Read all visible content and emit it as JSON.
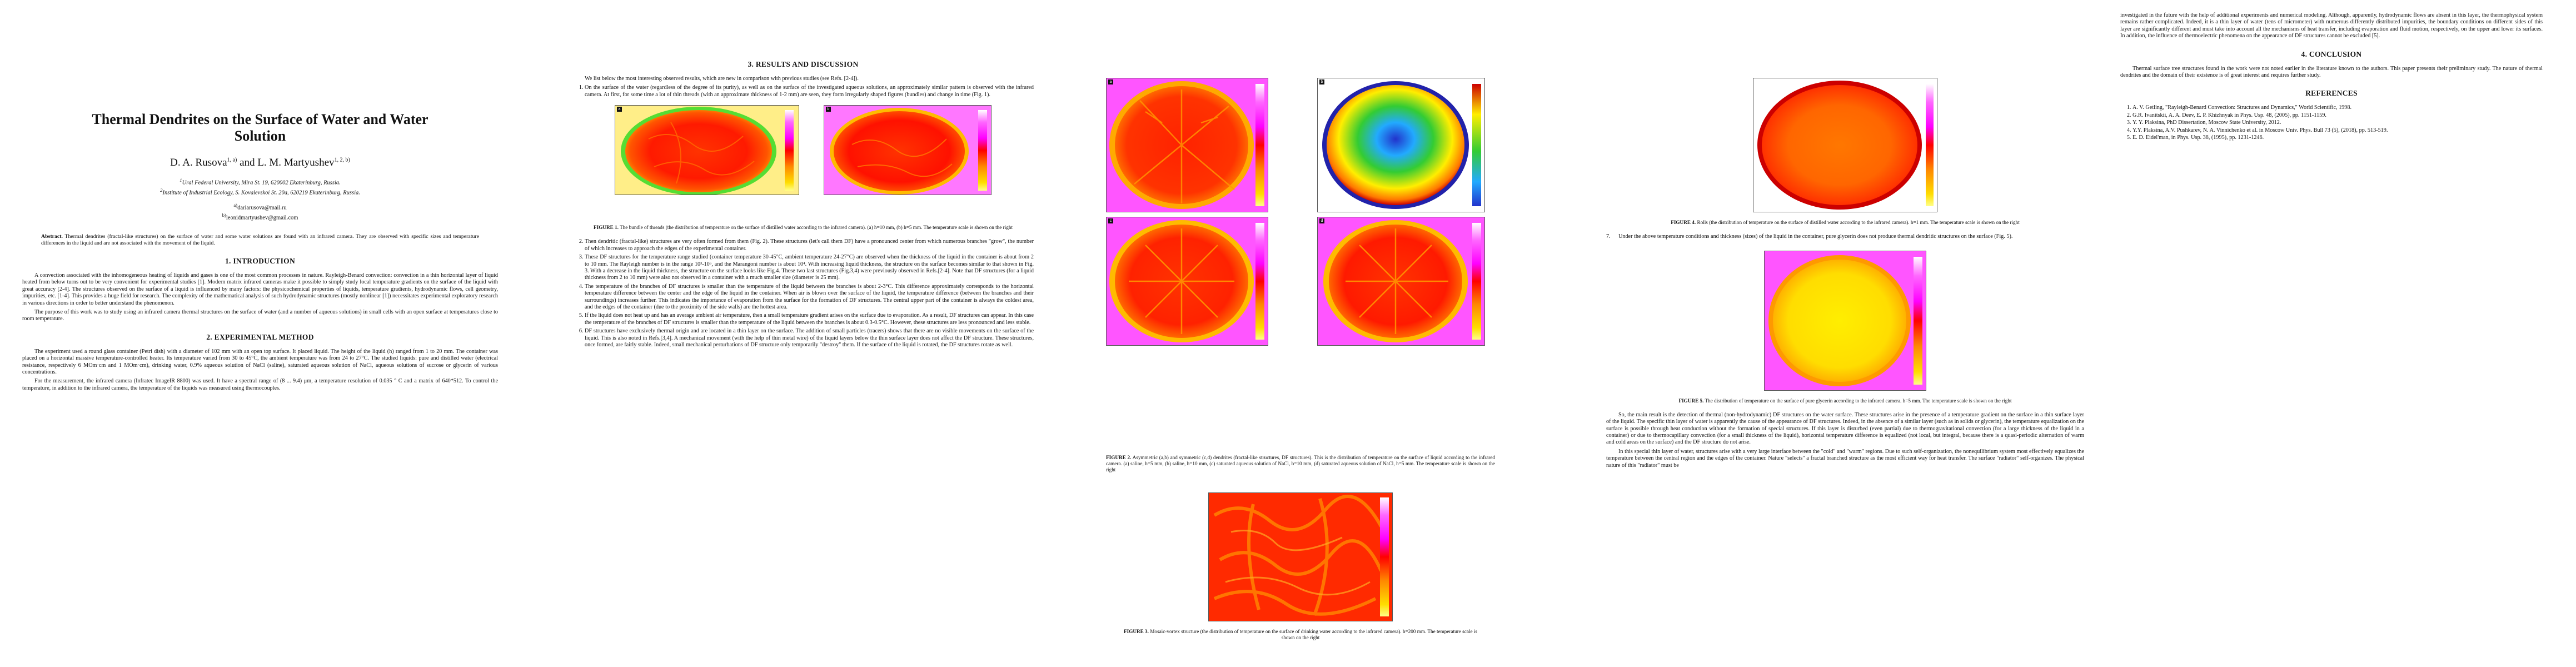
{
  "title": "Thermal Dendrites on the Surface of Water and Water Solution",
  "authors": "D. A. Rusova",
  "authors_sup1": "1, a)",
  "authors_and": "and L. M. Martyushev",
  "authors_sup2": "1, 2, b)",
  "affiliation1": "Ural Federal University, Mira St. 19, 620002 Ekaterinburg, Russia.",
  "affiliation2": "Institute of Industrial Ecology, S. Kovalevskoi St. 20a, 620219 Ekaterinburg, Russia.",
  "affil_sup1": "1",
  "affil_sup2": "2",
  "email_a": "dariarusova@mail.ru",
  "email_b": "leonidmartyushev@gmail.com",
  "email_sup_a": "a)",
  "email_sup_b": "b)",
  "abstract_label": "Abstract.",
  "abstract_text": "Thermal dendrites (fractal-like structures) on the surface of water and some water solutions are found with an infrared camera. They are observed with specific sizes and temperature differences in the liquid and are not associated with the movement of the liquid.",
  "sections": {
    "intro": "1.   INTRODUCTION",
    "method": "2.   EXPERIMENTAL METHOD",
    "results": "3.   RESULTS AND DISCUSSION",
    "conclusion": "4.   CONCLUSION",
    "references": "REFERENCES"
  },
  "intro_p1": "A convection associated with the inhomogeneous heating of liquids and gases is one of the most common processes in nature. Rayleigh-Benard convection: convection in a thin horizontal layer of liquid heated from below turns out to be very convenient for experimental studies [1]. Modern matrix infrared cameras make it possible to simply study local temperature gradients on the surface of the liquid with great accuracy [2-4]. The structures observed on the surface of a liquid is influenced by many factors: the physicochemical properties of liquids, temperature gradients, hydrodynamic flows, cell geometry, impurities, etc. [1-4]. This provides a huge field for research. The complexity of the mathematical analysis of such hydrodynamic structures (mostly nonlinear [1]) necessitates experimental exploratory research in various directions in order to better understand the phenomenon.",
  "intro_p2": "The purpose of this work was to study using an infrared camera thermal structures on the surface of water (and a number of aqueous solutions) in small cells with an open surface at temperatures close to room temperature.",
  "method_p1": "The experiment used a round glass container (Petri dish) with a diameter of 102 mm with an open top surface. It placed liquid. The height of the liquid (h) ranged from 1 to 20 mm. The container was placed on a horizontal massive temperature-controlled heater. Its temperature varied from 30 to 45°C, the ambient temperature was from 24 to 27°C. The studied liquids: pure and distilled water (electrical resistance, respectively 6 MOm·cm and 1 MOm·cm), drinking water, 0.9% aqueous solution of NaCl (saline), saturated aqueous solution of NaCl, aqueous solutions of sucrose or glycerin of various concentrations.",
  "method_p2": "For the measurement, the infrared camera (Infratec ImageIR 8800) was used. It have a spectral range of (8 ... 9.4) μm, a temperature resolution of 0.035 ° C and a matrix of 640*512. To control the temperature, in addition to the infrared camera, the temperature of the liquids was measured using thermocouples.",
  "results_intro": "We list below the most interesting observed results, which are new in comparison with previous studies (see Refs. [2-4]).",
  "results_items": [
    "On the surface of the water (regardless of the degree of its purity), as well as on the surface of the investigated aqueous solutions, an approximately similar pattern is observed with the infrared camera. At first, for some time a lot of thin threads (with an approximate thickness of 1-2 mm) are seen, they form irregularly shaped figures (bundles) and change in time (Fig. 1).",
    "Then dendritic (fractal-like) structures are very often formed from them (Fig. 2). These structures (let's call them DF) have a pronounced center from which numerous branches \"grow\", the number of which increases to approach the edges of the experimental container.",
    "These DF structures for the temperature range studied (container temperature 30-45°C, ambient temperature 24-27°C) are observed when the thickness of the liquid in the container is about from 2 to 10 mm. The Rayleigh number is in the range 10³-10⁶, and the Marangoni number is about 10⁴. With increasing liquid thickness, the structure on the surface becomes similar to that shown in Fig. 3. With a decrease in the liquid thickness, the structure on the surface looks like Fig.4. These two last structures (Fig.3,4) were previously observed in Refs.[2-4]. Note that DF structures (for a liquid thickness from 2 to 10 mm) were also not observed in a container with a much smaller size (diameter is 25 mm).",
    "The temperature of the branches of DF structures is smaller than the temperature of the liquid between the branches is about 2-3°C. This difference approximately corresponds to the horizontal temperature difference between the center and the edge of the liquid in the container. When air is blown over the surface of the liquid, the temperature difference (between the branches and their surroundings) increases further. This indicates the importance of evaporation from the surface for the formation of DF structures. The central upper part of the container is always the coldest area, and the edges of the container (due to the proximity of the side walls) are the hottest area.",
    "If the liquid does not heat up and has an average ambient air temperature, then a small temperature gradient arises on the surface due to evaporation. As a result, DF structures can appear. In this case the temperature of the branches of DF structures is smaller than the temperature of the liquid between the branches is about 0.3-0.5°C. However, these structures are less pronounced and less stable.",
    "DF structures have exclusively thermal origin and are located in a thin layer on the surface. The addition of small particles (tracers) shows that there are no visible movements on the surface of the liquid. This is also noted in Refs.[3,4]. A mechanical movement (with the help of thin metal wire) of the liquid layers below the thin surface layer does not affect the DF structure. These structures, once formed, are fairly stable. Indeed, small mechanical perturbations of DF structure only temporarily \"destroy\" them. If the surface of the liquid is rotated, the DF structures rotate as well."
  ],
  "results_items_cont": [
    "Under the above temperature conditions and thickness (sizes) of the liquid in the container, pure glycerin does not produce thermal dendritic structures on the surface (Fig. 5)."
  ],
  "results_cont_number": "7.",
  "fig1_caption_label": "FIGURE 1.",
  "fig1_caption": "The bundle of threads (the distribution of temperature on the surface of distilled water according to the infrared camera). (a) h=10 mm, (b) h=5 mm. The temperature scale is shown on the right",
  "fig2_caption_label": "FIGURE 2.",
  "fig2_caption": "Asymmetric (a,b) and symmetric (c,d) dendrites (fractal-like structures, DF structures). This is the distribution of temperature on the surface of liquid according to the infrared camera. (a) saline, h=5 mm, (b) saline, h=10 mm, (c) saturated aqueous solution of NaCl, h=10 mm, (d) saturated aqueous solution of NaCl, h=5 mm. The temperature scale is shown on the right",
  "fig3_caption_label": "FIGURE 3.",
  "fig3_caption": "Mosaic-vortex structure (the distribution of temperature on the surface of drinking water according to the infrared camera). h=200 mm. The temperature scale is shown on the right",
  "fig4_caption_label": "FIGURE 4.",
  "fig4_caption": "Rolls (the distribution of temperature on the surface of distilled water according to the infrared camera). h=1 mm. The temperature scale is shown on the right",
  "fig5_caption_label": "FIGURE 5.",
  "fig5_caption": "The distribution of temperature on the surface of pure glycerin according to the infrared camera. h=5 mm. The temperature scale is shown on the right",
  "panel_labels": [
    "a",
    "b",
    "c",
    "d"
  ],
  "discussion_p1": "So, the main result is the detection of thermal (non-hydrodynamic) DF structures on the water surface. These structures arise in the presence of a temperature gradient on the surface in a thin surface layer of the liquid. The specific thin layer of water is apparently the cause of the appearance of DF structures. Indeed, in the absence of a similar layer (such as in solids or glycerin), the temperature equalization on the surface is possible through heat conduction without the formation of special structures. If this layer is disturbed (even partial) due to thermogravitational convection (for a large thickness of the liquid in a container) or due to thermocapillary convection (for a small thickness of the liquid), horizontal temperature difference is equalized (not local, but integral, because there is a quasi-periodic alternation of warm and cold areas on the surface) and the DF structure do not arise.",
  "discussion_p2": "In this special thin layer of water, structures arise with a very large interface between the \"cold\" and \"warm\" regions. Due to such self-organization, the nonequilibrium system most effectively equalizes the temperature between the central region and the edges of the container. Nature \"selects\" a fractal branched structure as the most efficient way for heat transfer. The surface \"radiator\" self-organizes. The physical nature of this \"radiator\" must be",
  "discussion_p3": "investigated in the future with the help of additional experiments and numerical modeling. Although, apparently, hydrodynamic flows are absent in this layer, the thermophysical system remains rather complicated. Indeed, it is a thin layer of water (tens of micrometer) with numerous differently distributed impurities, the boundary conditions on different sides of this layer are significantly different and must take into account all the mechanisms of heat transfer, including evaporation and fluid motion, respectively, on the upper and lower its surfaces. In addition, the influence of thermoelectric phenomena on the appearance of DF structures cannot be excluded [5].",
  "conclusion_p1": "Thermal surface tree structures found in the work were not noted earlier in the literature known to the authors. This paper presents their preliminary study. The nature of thermal dendrites and the domain of their existence is of great interest and requires further study.",
  "references": [
    "A. V. Getling, \"Rayleigh-Benard Convection: Structures and Dynamics,\" World Scientific, 1998.",
    "G.R. Ivanitskii, A. A. Deev, E. P. Khizhnyak in Phys. Usp. 48, (2005), pp. 1151-1159.",
    "Y. Y. Plaksina, PhD Dissertation, Moscow State University, 2012.",
    "Y.Y. Plaksina, A.V. Pushkarev, N. A. Vinnichenko et al. in Moscow Univ. Phys. Bull 73 (5), (2018), pp. 513-519.",
    "E. D. Eidel'man, in Phys. Usp. 38, (1995), pp. 1231-1246."
  ],
  "scale_colors": [
    "#ffffff",
    "#ff66ff",
    "#ff00ff",
    "#cc00cc",
    "#ff0000",
    "#ff7700",
    "#ffcc00",
    "#ffff66"
  ]
}
